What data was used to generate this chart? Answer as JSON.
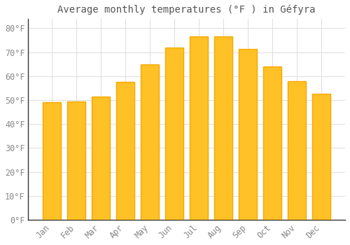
{
  "title": "Average monthly temperatures (°F ) in Géfyra",
  "months": [
    "Jan",
    "Feb",
    "Mar",
    "Apr",
    "May",
    "Jun",
    "Jul",
    "Aug",
    "Sep",
    "Oct",
    "Nov",
    "Dec"
  ],
  "values": [
    49,
    49.5,
    51.5,
    57.5,
    65,
    72,
    76.5,
    76.5,
    71.5,
    64,
    58,
    52.5
  ],
  "bar_color_face": "#FFC125",
  "bar_color_edge": "#F5A800",
  "background_color": "#FFFFFF",
  "grid_color": "#DDDDDD",
  "text_color": "#888888",
  "title_color": "#555555",
  "ylim": [
    0,
    84
  ],
  "yticks": [
    0,
    10,
    20,
    30,
    40,
    50,
    60,
    70,
    80
  ],
  "title_fontsize": 10,
  "axis_fontsize": 8.5,
  "bar_width": 0.75
}
